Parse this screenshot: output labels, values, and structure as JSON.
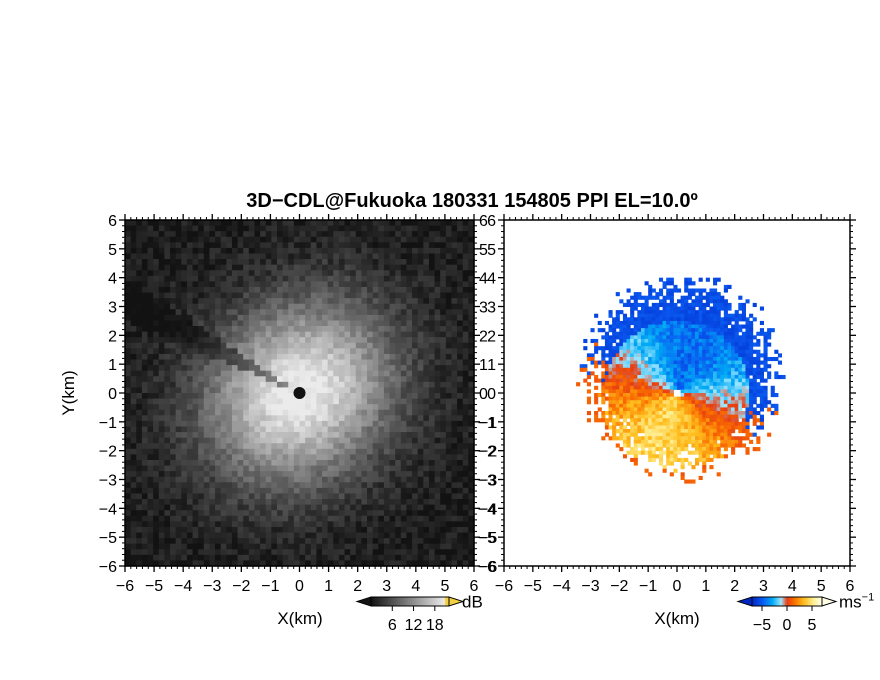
{
  "chart_data": {
    "title": "3D−CDL@Fukuoka 180331 154805 PPI EL=10.0º",
    "panels": [
      {
        "type": "heatmap",
        "name": "left",
        "xlabel": "X(km)",
        "ylabel": "Y(km)",
        "xlim": [
          -6,
          6
        ],
        "ylim": [
          -6,
          6
        ],
        "ticks": [
          "−6",
          "−5",
          "−4",
          "−3",
          "−2",
          "−1",
          "0",
          "1",
          "2",
          "3",
          "4",
          "5",
          "6"
        ],
        "colorbar": {
          "unit": "dB",
          "tick_labels": [
            "6",
            "12",
            "18"
          ],
          "range": [
            0,
            22
          ]
        },
        "colormap": "grayscale"
      },
      {
        "type": "heatmap",
        "name": "right",
        "xlabel": "X(km)",
        "ylabel": "",
        "xlim": [
          -6,
          6
        ],
        "ylim": [
          -6,
          6
        ],
        "ticks": [
          "−6",
          "−5",
          "−4",
          "−3",
          "−2",
          "−1",
          "0",
          "1",
          "2",
          "3",
          "4",
          "5",
          "6"
        ],
        "colorbar": {
          "unit": "ms",
          "unit_exponent": "−1",
          "tick_labels": [
            "−5",
            "0",
            "5"
          ],
          "range": [
            -7,
            7
          ]
        },
        "colormap": "blue-red-yellow"
      }
    ]
  }
}
